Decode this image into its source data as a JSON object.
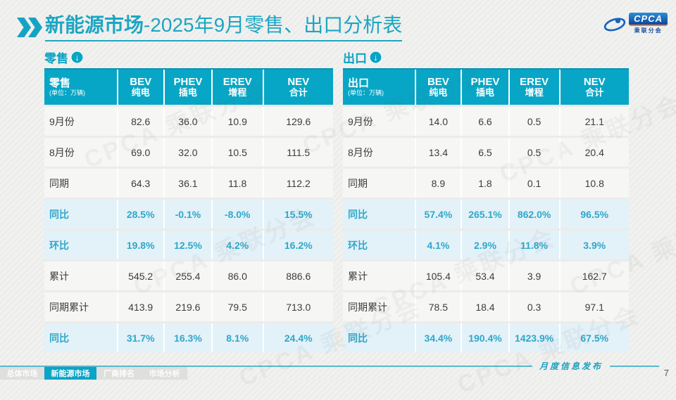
{
  "title": {
    "bold": "新能源市场",
    "rest": "-2025年9月零售、出口分析表"
  },
  "logo": {
    "name": "CPCA",
    "subtitle": "乘联分会"
  },
  "watermark": "CPCA 乘联分会",
  "icons": {
    "down_arrow": "↓"
  },
  "colors": {
    "accent": "#08A6C6",
    "highlight_bg": "#E3F1F8",
    "highlight_text": "#2FA7C9"
  },
  "footer": {
    "script_label": "月度信息发布",
    "page_number": "7"
  },
  "tabs": [
    {
      "label": "总体市场",
      "active": false
    },
    {
      "label": "新能源市场",
      "active": true
    },
    {
      "label": "厂商排名",
      "active": false
    },
    {
      "label": "市场分析",
      "active": false
    }
  ],
  "chart_data": [
    {
      "type": "table",
      "section_label": "零售",
      "corner_title": "零售",
      "corner_unit": "(单位：万辆)",
      "columns": [
        {
          "en": "BEV",
          "zh": "纯电"
        },
        {
          "en": "PHEV",
          "zh": "插电"
        },
        {
          "en": "EREV",
          "zh": "增程"
        },
        {
          "en": "NEV",
          "zh": "合计"
        }
      ],
      "rows": [
        {
          "label": "9月份",
          "values": [
            "82.6",
            "36.0",
            "10.9",
            "129.6"
          ],
          "highlight": false
        },
        {
          "label": "8月份",
          "values": [
            "69.0",
            "32.0",
            "10.5",
            "111.5"
          ],
          "highlight": false
        },
        {
          "label": "同期",
          "values": [
            "64.3",
            "36.1",
            "11.8",
            "112.2"
          ],
          "highlight": false
        },
        {
          "label": "同比",
          "values": [
            "28.5%",
            "-0.1%",
            "-8.0%",
            "15.5%"
          ],
          "highlight": true
        },
        {
          "label": "环比",
          "values": [
            "19.8%",
            "12.5%",
            "4.2%",
            "16.2%"
          ],
          "highlight": true
        },
        {
          "label": "累计",
          "values": [
            "545.2",
            "255.4",
            "86.0",
            "886.6"
          ],
          "highlight": false
        },
        {
          "label": "同期累计",
          "values": [
            "413.9",
            "219.6",
            "79.5",
            "713.0"
          ],
          "highlight": false
        },
        {
          "label": "同比",
          "values": [
            "31.7%",
            "16.3%",
            "8.1%",
            "24.4%"
          ],
          "highlight": true
        }
      ]
    },
    {
      "type": "table",
      "section_label": "出口",
      "corner_title": "出口",
      "corner_unit": "(单位：万辆)",
      "columns": [
        {
          "en": "BEV",
          "zh": "纯电"
        },
        {
          "en": "PHEV",
          "zh": "插电"
        },
        {
          "en": "EREV",
          "zh": "增程"
        },
        {
          "en": "NEV",
          "zh": "合计"
        }
      ],
      "rows": [
        {
          "label": "9月份",
          "values": [
            "14.0",
            "6.6",
            "0.5",
            "21.1"
          ],
          "highlight": false
        },
        {
          "label": "8月份",
          "values": [
            "13.4",
            "6.5",
            "0.5",
            "20.4"
          ],
          "highlight": false
        },
        {
          "label": "同期",
          "values": [
            "8.9",
            "1.8",
            "0.1",
            "10.8"
          ],
          "highlight": false
        },
        {
          "label": "同比",
          "values": [
            "57.4%",
            "265.1%",
            "862.0%",
            "96.5%"
          ],
          "highlight": true
        },
        {
          "label": "环比",
          "values": [
            "4.1%",
            "2.9%",
            "11.8%",
            "3.9%"
          ],
          "highlight": true
        },
        {
          "label": "累计",
          "values": [
            "105.4",
            "53.4",
            "3.9",
            "162.7"
          ],
          "highlight": false
        },
        {
          "label": "同期累计",
          "values": [
            "78.5",
            "18.4",
            "0.3",
            "97.1"
          ],
          "highlight": false
        },
        {
          "label": "同比",
          "values": [
            "34.4%",
            "190.4%",
            "1423.9%",
            "67.5%"
          ],
          "highlight": true
        }
      ]
    }
  ]
}
